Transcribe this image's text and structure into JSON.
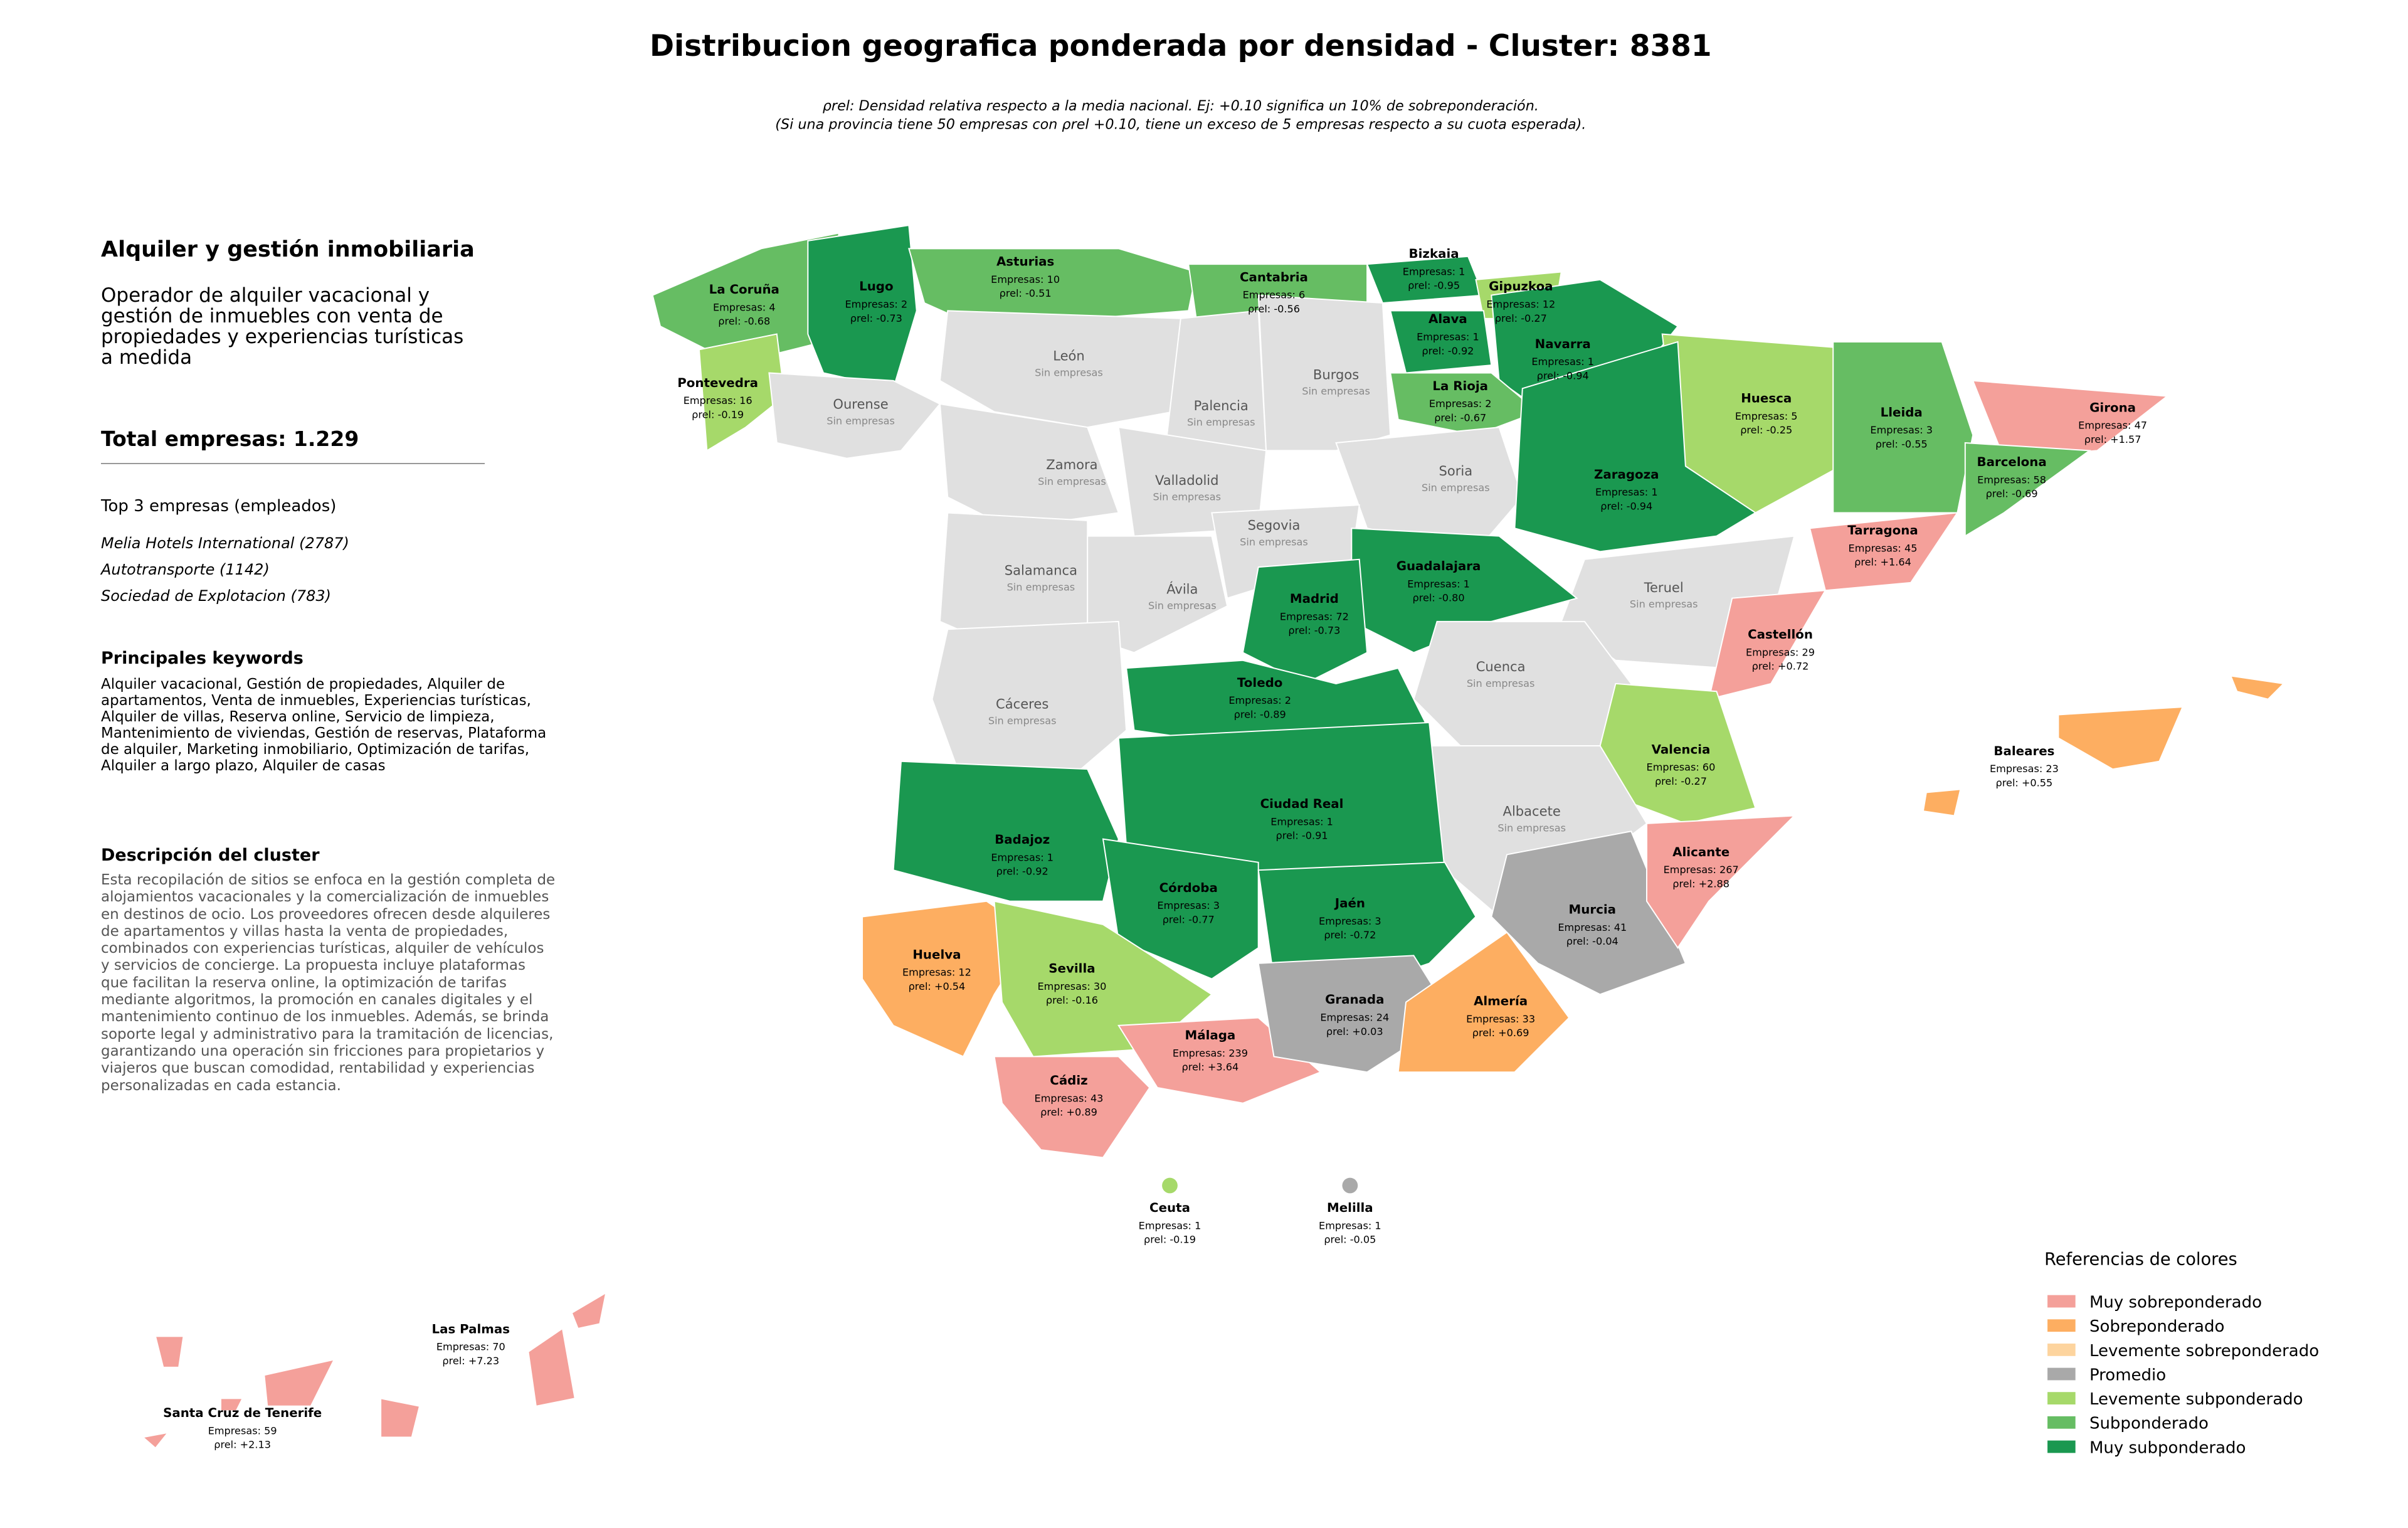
{
  "header": {
    "title": "Distribucion geografica ponderada por densidad - Cluster: 8381",
    "subtitle_lines": [
      "ρrel: Densidad relativa respecto a la media nacional. Ej: +0.10 significa un 10% de sobreponderación.",
      "(Si una provincia tiene 50 empresas con ρrel +0.10, tiene un exceso de 5 empresas respecto a su cuota esperada)."
    ]
  },
  "panel": {
    "title": "Alquiler y gestión inmobiliaria",
    "description": "Operador de alquiler vacacional y gestión de inmuebles con venta de propiedades y experiencias turísticas a medida",
    "total": "Total empresas: 1.229",
    "top_header": "Top 3 empresas (empleados)",
    "top": [
      "Melia Hotels International (2787)",
      "Autotransporte (1142)",
      "Sociedad de Explotacion (783)"
    ],
    "keywords_header": "Principales keywords",
    "keywords": "Alquiler vacacional, Gestión de propiedades, Alquiler de apartamentos, Venta de inmuebles, Experiencias turísticas, Alquiler de villas, Reserva online, Servicio de limpieza, Mantenimiento de viviendas, Gestión de reservas, Plataforma de alquiler, Marketing inmobiliario, Optimización de tarifas, Alquiler a largo plazo, Alquiler de casas",
    "cluster_header": "Descripción del cluster",
    "cluster_text": "Esta recopilación de sitios se enfoca en la gestión completa de alojamientos vacacionales y la comercialización de inmuebles en destinos de ocio. Los proveedores ofrecen desde alquileres de apartamentos y villas hasta la venta de propiedades, combinados con experiencias turísticas, alquiler de vehículos y servicios de concierge. La propuesta incluye plataformas que facilitan la reserva online, la optimización de tarifas mediante algoritmos, la promoción en canales digitales y el mantenimiento continuo de los inmuebles. Además, se brinda soporte legal y administrativo para la tramitación de licencias, garantizando una operación sin fricciones para propietarios y viajeros que buscan comodidad, rentabilidad y experiencias personalizadas en cada estancia."
  },
  "provinces": [
    {
      "name": "La Coruña",
      "empresas": "Empresas: 4",
      "rho": "ρrel: -0.68",
      "color": "#66bd63"
    },
    {
      "name": "Lugo",
      "empresas": "Empresas: 2",
      "rho": "ρrel: -0.73",
      "color": "#1a9850"
    },
    {
      "name": "Pontevedra",
      "empresas": "Empresas: 16",
      "rho": "ρrel: -0.19",
      "color": "#a6d96a"
    },
    {
      "name": "Ourense",
      "status": "Sin empresas",
      "color": "#e0e0e0"
    },
    {
      "name": "Asturias",
      "empresas": "Empresas: 10",
      "rho": "ρrel: -0.51",
      "color": "#66bd63"
    },
    {
      "name": "Cantabria",
      "empresas": "Empresas: 6",
      "rho": "ρrel: -0.56",
      "color": "#66bd63"
    },
    {
      "name": "Bizkaia",
      "empresas": "Empresas: 1",
      "rho": "ρrel: -0.95",
      "color": "#1a9850"
    },
    {
      "name": "Gipuzkoa",
      "empresas": "Empresas: 12",
      "rho": "ρrel: -0.27",
      "color": "#a6d96a"
    },
    {
      "name": "Alava",
      "empresas": "Empresas: 1",
      "rho": "ρrel: -0.92",
      "color": "#1a9850"
    },
    {
      "name": "Navarra",
      "empresas": "Empresas: 1",
      "rho": "ρrel: -0.94",
      "color": "#1a9850"
    },
    {
      "name": "La Rioja",
      "empresas": "Empresas: 2",
      "rho": "ρrel: -0.67",
      "color": "#66bd63"
    },
    {
      "name": "León",
      "status": "Sin empresas",
      "color": "#e0e0e0"
    },
    {
      "name": "Palencia",
      "status": "Sin empresas",
      "color": "#e0e0e0"
    },
    {
      "name": "Burgos",
      "status": "Sin empresas",
      "color": "#e0e0e0"
    },
    {
      "name": "Zamora",
      "status": "Sin empresas",
      "color": "#e0e0e0"
    },
    {
      "name": "Valladolid",
      "status": "Sin empresas",
      "color": "#e0e0e0"
    },
    {
      "name": "Soria",
      "status": "Sin empresas",
      "color": "#e0e0e0"
    },
    {
      "name": "Segovia",
      "status": "Sin empresas",
      "color": "#e0e0e0"
    },
    {
      "name": "Salamanca",
      "status": "Sin empresas",
      "color": "#e0e0e0"
    },
    {
      "name": "Ávila",
      "status": "Sin empresas",
      "color": "#e0e0e0"
    },
    {
      "name": "Huesca",
      "empresas": "Empresas: 5",
      "rho": "ρrel: -0.25",
      "color": "#a6d96a"
    },
    {
      "name": "Lleida",
      "empresas": "Empresas: 3",
      "rho": "ρrel: -0.55",
      "color": "#66bd63"
    },
    {
      "name": "Girona",
      "empresas": "Empresas: 47",
      "rho": "ρrel: +1.57",
      "color": "#f4a09a"
    },
    {
      "name": "Barcelona",
      "empresas": "Empresas: 58",
      "rho": "ρrel: -0.69",
      "color": "#66bd63"
    },
    {
      "name": "Tarragona",
      "empresas": "Empresas: 45",
      "rho": "ρrel: +1.64",
      "color": "#f4a09a"
    },
    {
      "name": "Zaragoza",
      "empresas": "Empresas: 1",
      "rho": "ρrel: -0.94",
      "color": "#1a9850"
    },
    {
      "name": "Teruel",
      "status": "Sin empresas",
      "color": "#e0e0e0"
    },
    {
      "name": "Castellón",
      "empresas": "Empresas: 29",
      "rho": "ρrel: +0.72",
      "color": "#f4a09a"
    },
    {
      "name": "Guadalajara",
      "empresas": "Empresas: 1",
      "rho": "ρrel: -0.80",
      "color": "#1a9850"
    },
    {
      "name": "Madrid",
      "empresas": "Empresas: 72",
      "rho": "ρrel: -0.73",
      "color": "#1a9850"
    },
    {
      "name": "Cuenca",
      "status": "Sin empresas",
      "color": "#e0e0e0"
    },
    {
      "name": "Toledo",
      "empresas": "Empresas: 2",
      "rho": "ρrel: -0.89",
      "color": "#1a9850"
    },
    {
      "name": "Cáceres",
      "status": "Sin empresas",
      "color": "#e0e0e0"
    },
    {
      "name": "Valencia",
      "empresas": "Empresas: 60",
      "rho": "ρrel: -0.27",
      "color": "#a6d96a"
    },
    {
      "name": "Albacete",
      "status": "Sin empresas",
      "color": "#e0e0e0"
    },
    {
      "name": "Badajoz",
      "empresas": "Empresas: 1",
      "rho": "ρrel: -0.92",
      "color": "#1a9850"
    },
    {
      "name": "Ciudad Real",
      "empresas": "Empresas: 1",
      "rho": "ρrel: -0.91",
      "color": "#1a9850"
    },
    {
      "name": "Córdoba",
      "empresas": "Empresas: 3",
      "rho": "ρrel: -0.77",
      "color": "#1a9850"
    },
    {
      "name": "Jaén",
      "empresas": "Empresas: 3",
      "rho": "ρrel: -0.72",
      "color": "#1a9850"
    },
    {
      "name": "Huelva",
      "empresas": "Empresas: 12",
      "rho": "ρrel: +0.54",
      "color": "#fdae61"
    },
    {
      "name": "Sevilla",
      "empresas": "Empresas: 30",
      "rho": "ρrel: -0.16",
      "color": "#a6d96a"
    },
    {
      "name": "Cádiz",
      "empresas": "Empresas: 43",
      "rho": "ρrel: +0.89",
      "color": "#f4a09a"
    },
    {
      "name": "Málaga",
      "empresas": "Empresas: 239",
      "rho": "ρrel: +3.64",
      "color": "#f4a09a"
    },
    {
      "name": "Granada",
      "empresas": "Empresas: 24",
      "rho": "ρrel: +0.03",
      "color": "#a9a9a9"
    },
    {
      "name": "Almería",
      "empresas": "Empresas: 33",
      "rho": "ρrel: +0.69",
      "color": "#fdae61"
    },
    {
      "name": "Murcia",
      "empresas": "Empresas: 41",
      "rho": "ρrel: -0.04",
      "color": "#a9a9a9"
    },
    {
      "name": "Alicante",
      "empresas": "Empresas: 267",
      "rho": "ρrel: +2.88",
      "color": "#f4a09a"
    },
    {
      "name": "Baleares",
      "empresas": "Empresas: 23",
      "rho": "ρrel: +0.55",
      "color": "#fdae61"
    },
    {
      "name": "Las Palmas",
      "empresas": "Empresas: 70",
      "rho": "ρrel: +7.23",
      "color": "#f4a09a"
    },
    {
      "name": "Santa Cruz de Tenerife",
      "empresas": "Empresas: 59",
      "rho": "ρrel: +2.13",
      "color": "#f4a09a"
    },
    {
      "name": "Ceuta",
      "empresas": "Empresas: 1",
      "rho": "ρrel: -0.19",
      "color": "#a6d96a"
    },
    {
      "name": "Melilla",
      "empresas": "Empresas: 1",
      "rho": "ρrel: -0.05",
      "color": "#a9a9a9"
    }
  ],
  "legend": {
    "title": "Referencias de colores",
    "items": [
      {
        "label": "Muy sobreponderado",
        "color": "#f4a09a"
      },
      {
        "label": "Sobreponderado",
        "color": "#fdae61"
      },
      {
        "label": "Levemente sobreponderado",
        "color": "#fdd49e"
      },
      {
        "label": "Promedio",
        "color": "#a9a9a9"
      },
      {
        "label": "Levemente subponderado",
        "color": "#a6d96a"
      },
      {
        "label": "Subponderado",
        "color": "#66bd63"
      },
      {
        "label": "Muy subponderado",
        "color": "#1a9850"
      }
    ]
  }
}
